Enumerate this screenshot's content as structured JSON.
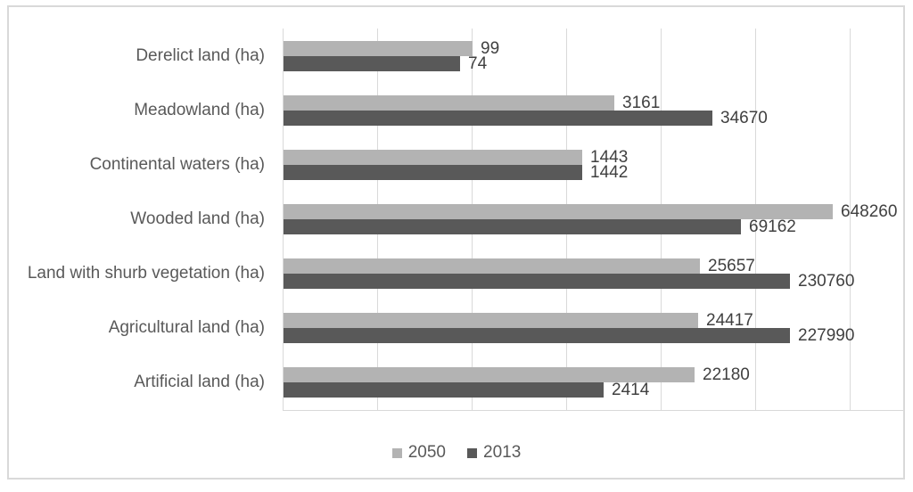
{
  "chart_data": {
    "type": "bar",
    "orientation": "horizontal",
    "title": "",
    "categories": [
      "Derelict land (ha)",
      "Meadowland (ha)",
      "Continental waters (ha)",
      "Wooded land (ha)",
      "Land with shurb vegetation (ha)",
      "Agricultural land (ha)",
      "Artificial land (ha)"
    ],
    "series": [
      {
        "name": "2050",
        "color": "#b3b3b3",
        "values": [
          99,
          3161,
          1443,
          648260,
          25657,
          24417,
          22180
        ]
      },
      {
        "name": "2013",
        "color": "#595959",
        "values": [
          74,
          34670,
          1442,
          69162,
          230760,
          227990,
          2414
        ]
      }
    ],
    "x_axis": {
      "scale": "log10",
      "min": 1,
      "max": 1000000,
      "gridlines_at": [
        1,
        10,
        100,
        1000,
        10000,
        100000,
        1000000
      ],
      "tick_labels_visible": false
    },
    "grid": true,
    "data_labels": "outside-end",
    "legend_position": "bottom"
  },
  "legend": {
    "items": [
      {
        "label": "2050",
        "color": "#b3b3b3"
      },
      {
        "label": "2013",
        "color": "#595959"
      }
    ]
  },
  "colors": {
    "series_2050": "#b3b3b3",
    "series_2013": "#595959",
    "gridline": "#d9d9d9",
    "chart_border": "#d9d9d9",
    "category_text": "#595959",
    "value_text": "#404040",
    "background": "#ffffff"
  }
}
